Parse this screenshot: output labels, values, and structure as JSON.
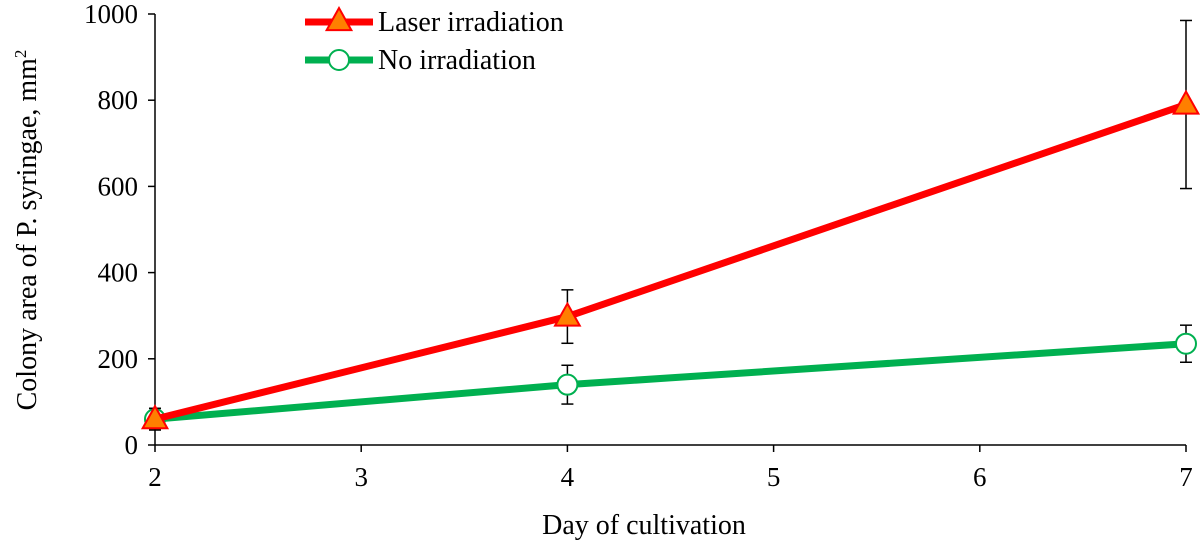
{
  "chart_data": {
    "type": "line",
    "title": "",
    "xlabel": "Day of cultivation",
    "ylabel": "Colony area of P. syringae, mm",
    "ylabel_superscript": "2",
    "xlim": [
      2,
      7
    ],
    "ylim": [
      0,
      1000
    ],
    "x_ticks": [
      "2",
      "3",
      "4",
      "5",
      "6",
      "7"
    ],
    "y_ticks": [
      "0",
      "200",
      "400",
      "600",
      "800",
      "1000"
    ],
    "grid": false,
    "legend_position": "top-left",
    "series": [
      {
        "name": "Laser irradiation",
        "color": "#ff0000",
        "marker": "triangle",
        "marker_fill": "#ff7f00",
        "x": [
          2,
          4,
          7
        ],
        "y": [
          60,
          298,
          790
        ],
        "err": [
          25,
          62,
          195
        ]
      },
      {
        "name": "No irradiation",
        "color": "#00b050",
        "marker": "circle",
        "marker_fill": "#ffffff",
        "x": [
          2,
          4,
          7
        ],
        "y": [
          60,
          140,
          235
        ],
        "err": [
          25,
          45,
          43
        ]
      }
    ]
  }
}
